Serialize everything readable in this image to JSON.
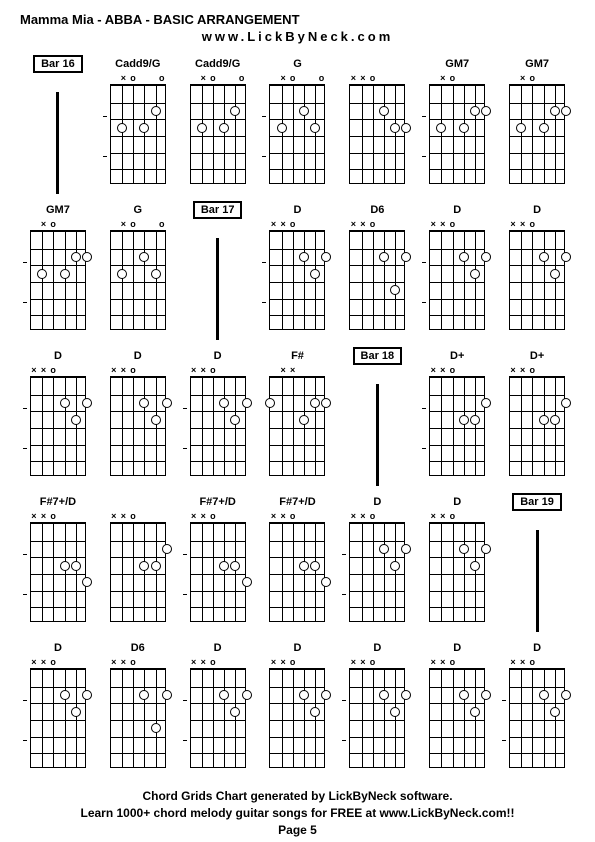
{
  "title": "Mamma Mia - ABBA - BASIC ARRANGEMENT",
  "subtitle": "www.LickByNeck.com",
  "footer": {
    "line1": "Chord Grids Chart generated by LickByNeck software.",
    "line2": "Learn 1000+ chord melody guitar songs for FREE at www.LickByNeck.com!!",
    "line3": "Page 5"
  },
  "diagram": {
    "strings": 6,
    "frets": 6,
    "width": 56,
    "height": 100,
    "dot_size": 10,
    "colors": {
      "background": "#ffffff",
      "line": "#000000",
      "dot_fill": "#ffffff",
      "dot_border": "#000000"
    }
  },
  "chords": [
    {
      "type": "bar",
      "label": "Bar 16"
    },
    {
      "type": "chord",
      "label": "Cadd9/G",
      "markers": [
        "",
        "×",
        "o",
        "",
        "",
        "o"
      ],
      "dots": [
        [
          3,
          2
        ],
        [
          3,
          4
        ],
        [
          2,
          5
        ]
      ],
      "ticks": true
    },
    {
      "type": "chord",
      "label": "Cadd9/G",
      "markers": [
        "",
        "×",
        "o",
        "",
        "",
        "o"
      ],
      "dots": [
        [
          3,
          2
        ],
        [
          3,
          4
        ],
        [
          2,
          5
        ]
      ]
    },
    {
      "type": "chord",
      "label": "G",
      "markers": [
        "",
        "×",
        "o",
        "",
        "",
        "o"
      ],
      "dots": [
        [
          3,
          2
        ],
        [
          3,
          5
        ],
        [
          2,
          4
        ]
      ],
      "ticks": true
    },
    {
      "type": "chord",
      "label": "",
      "markers": [
        "×",
        "×",
        "o",
        "",
        "",
        ""
      ],
      "dots": [
        [
          2,
          4
        ],
        [
          3,
          5
        ],
        [
          3,
          6
        ]
      ]
    },
    {
      "type": "chord",
      "label": "GM7",
      "markers": [
        "",
        "×",
        "o",
        "",
        "",
        ""
      ],
      "dots": [
        [
          3,
          2
        ],
        [
          2,
          5
        ],
        [
          2,
          6
        ],
        [
          3,
          4
        ]
      ],
      "ticks": true
    },
    {
      "type": "chord",
      "label": "GM7",
      "markers": [
        "",
        "×",
        "o",
        "",
        "",
        ""
      ],
      "dots": [
        [
          3,
          2
        ],
        [
          2,
          5
        ],
        [
          2,
          6
        ],
        [
          3,
          4
        ]
      ]
    },
    {
      "type": "chord",
      "label": "GM7",
      "markers": [
        "",
        "×",
        "o",
        "",
        "",
        ""
      ],
      "dots": [
        [
          3,
          2
        ],
        [
          2,
          5
        ],
        [
          2,
          6
        ],
        [
          3,
          4
        ]
      ],
      "ticks": true
    },
    {
      "type": "chord",
      "label": "G",
      "markers": [
        "",
        "×",
        "o",
        "",
        "",
        "o"
      ],
      "dots": [
        [
          3,
          2
        ],
        [
          3,
          5
        ],
        [
          2,
          4
        ]
      ]
    },
    {
      "type": "bar",
      "label": "Bar 17"
    },
    {
      "type": "chord",
      "label": "D",
      "markers": [
        "×",
        "×",
        "o",
        "",
        "",
        ""
      ],
      "dots": [
        [
          2,
          4
        ],
        [
          3,
          5
        ],
        [
          2,
          6
        ]
      ],
      "ticks": true
    },
    {
      "type": "chord",
      "label": "D6",
      "markers": [
        "×",
        "×",
        "o",
        "",
        "",
        ""
      ],
      "dots": [
        [
          2,
          4
        ],
        [
          2,
          6
        ],
        [
          4,
          5
        ]
      ]
    },
    {
      "type": "chord",
      "label": "D",
      "markers": [
        "×",
        "×",
        "o",
        "",
        "",
        ""
      ],
      "dots": [
        [
          2,
          4
        ],
        [
          3,
          5
        ],
        [
          2,
          6
        ]
      ],
      "ticks": true
    },
    {
      "type": "chord",
      "label": "D",
      "markers": [
        "×",
        "×",
        "o",
        "",
        "",
        ""
      ],
      "dots": [
        [
          2,
          4
        ],
        [
          3,
          5
        ],
        [
          2,
          6
        ]
      ]
    },
    {
      "type": "chord",
      "label": "D",
      "markers": [
        "×",
        "×",
        "o",
        "",
        "",
        ""
      ],
      "dots": [
        [
          2,
          4
        ],
        [
          3,
          5
        ],
        [
          2,
          6
        ]
      ],
      "ticks": true
    },
    {
      "type": "chord",
      "label": "D",
      "markers": [
        "×",
        "×",
        "o",
        "",
        "",
        ""
      ],
      "dots": [
        [
          2,
          4
        ],
        [
          3,
          5
        ],
        [
          2,
          6
        ]
      ]
    },
    {
      "type": "chord",
      "label": "D",
      "markers": [
        "×",
        "×",
        "o",
        "",
        "",
        ""
      ],
      "dots": [
        [
          2,
          4
        ],
        [
          3,
          5
        ],
        [
          2,
          6
        ]
      ],
      "ticks": true
    },
    {
      "type": "chord",
      "label": "F#",
      "markers": [
        "",
        "×",
        "×",
        "",
        "",
        ""
      ],
      "dots": [
        [
          2,
          1
        ],
        [
          3,
          4
        ],
        [
          2,
          5
        ],
        [
          2,
          6
        ]
      ]
    },
    {
      "type": "bar",
      "label": "Bar 18"
    },
    {
      "type": "chord",
      "label": "D+",
      "markers": [
        "×",
        "×",
        "o",
        "",
        "",
        ""
      ],
      "dots": [
        [
          3,
          4
        ],
        [
          3,
          5
        ],
        [
          2,
          6
        ]
      ],
      "ticks": true
    },
    {
      "type": "chord",
      "label": "D+",
      "markers": [
        "×",
        "×",
        "o",
        "",
        "",
        ""
      ],
      "dots": [
        [
          3,
          4
        ],
        [
          3,
          5
        ],
        [
          2,
          6
        ]
      ]
    },
    {
      "type": "chord",
      "label": "F#7+/D",
      "markers": [
        "×",
        "×",
        "o",
        "",
        "",
        ""
      ],
      "dots": [
        [
          3,
          4
        ],
        [
          3,
          5
        ],
        [
          4,
          6
        ]
      ],
      "ticks": true
    },
    {
      "type": "chord",
      "label": "",
      "markers": [
        "×",
        "×",
        "o",
        "",
        "",
        ""
      ],
      "dots": [
        [
          3,
          4
        ],
        [
          3,
          5
        ],
        [
          2,
          6
        ]
      ]
    },
    {
      "type": "chord",
      "label": "F#7+/D",
      "markers": [
        "×",
        "×",
        "o",
        "",
        "",
        ""
      ],
      "dots": [
        [
          3,
          4
        ],
        [
          3,
          5
        ],
        [
          4,
          6
        ]
      ],
      "ticks": true
    },
    {
      "type": "chord",
      "label": "F#7+/D",
      "markers": [
        "×",
        "×",
        "o",
        "",
        "",
        ""
      ],
      "dots": [
        [
          3,
          4
        ],
        [
          3,
          5
        ],
        [
          4,
          6
        ]
      ]
    },
    {
      "type": "chord",
      "label": "D",
      "markers": [
        "×",
        "×",
        "o",
        "",
        "",
        ""
      ],
      "dots": [
        [
          2,
          4
        ],
        [
          3,
          5
        ],
        [
          2,
          6
        ]
      ],
      "ticks": true
    },
    {
      "type": "chord",
      "label": "D",
      "markers": [
        "×",
        "×",
        "o",
        "",
        "",
        ""
      ],
      "dots": [
        [
          2,
          4
        ],
        [
          3,
          5
        ],
        [
          2,
          6
        ]
      ]
    },
    {
      "type": "bar",
      "label": "Bar 19"
    },
    {
      "type": "chord",
      "label": "D",
      "markers": [
        "×",
        "×",
        "o",
        "",
        "",
        ""
      ],
      "dots": [
        [
          2,
          4
        ],
        [
          3,
          5
        ],
        [
          2,
          6
        ]
      ],
      "ticks": true
    },
    {
      "type": "chord",
      "label": "D6",
      "markers": [
        "×",
        "×",
        "o",
        "",
        "",
        ""
      ],
      "dots": [
        [
          2,
          4
        ],
        [
          2,
          6
        ],
        [
          4,
          5
        ]
      ]
    },
    {
      "type": "chord",
      "label": "D",
      "markers": [
        "×",
        "×",
        "o",
        "",
        "",
        ""
      ],
      "dots": [
        [
          2,
          4
        ],
        [
          3,
          5
        ],
        [
          2,
          6
        ]
      ],
      "ticks": true
    },
    {
      "type": "chord",
      "label": "D",
      "markers": [
        "×",
        "×",
        "o",
        "",
        "",
        ""
      ],
      "dots": [
        [
          2,
          4
        ],
        [
          3,
          5
        ],
        [
          2,
          6
        ]
      ]
    },
    {
      "type": "chord",
      "label": "D",
      "markers": [
        "×",
        "×",
        "o",
        "",
        "",
        ""
      ],
      "dots": [
        [
          2,
          4
        ],
        [
          3,
          5
        ],
        [
          2,
          6
        ]
      ],
      "ticks": true
    },
    {
      "type": "chord",
      "label": "D",
      "markers": [
        "×",
        "×",
        "o",
        "",
        "",
        ""
      ],
      "dots": [
        [
          2,
          4
        ],
        [
          3,
          5
        ],
        [
          2,
          6
        ]
      ]
    },
    {
      "type": "chord",
      "label": "D",
      "markers": [
        "×",
        "×",
        "o",
        "",
        "",
        ""
      ],
      "dots": [
        [
          2,
          4
        ],
        [
          3,
          5
        ],
        [
          2,
          6
        ]
      ],
      "ticks": true
    }
  ]
}
